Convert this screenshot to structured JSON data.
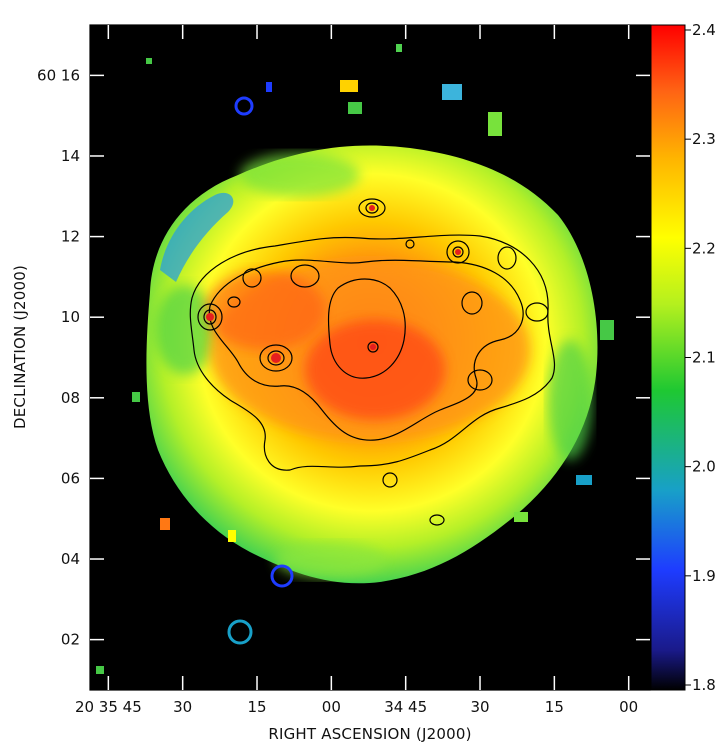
{
  "chart_data": {
    "type": "heatmap",
    "title": "",
    "xlabel": "RIGHT ASCENSION (J2000)",
    "ylabel": "DECLINATION (J2000)",
    "x_ticks": [
      {
        "label": "20 35 45",
        "ra_s": 2145
      },
      {
        "label": "30",
        "ra_s": 2130
      },
      {
        "label": "15",
        "ra_s": 2115
      },
      {
        "label": "00",
        "ra_s": 2100
      },
      {
        "label": "34 45",
        "ra_s": 2085
      },
      {
        "label": "30",
        "ra_s": 2070
      },
      {
        "label": "15",
        "ra_s": 2055
      },
      {
        "label": "00",
        "ra_s": 2040
      }
    ],
    "y_ticks": [
      {
        "label": "60 16",
        "dec_arcmin": 16
      },
      {
        "label": "14",
        "dec_arcmin": 14
      },
      {
        "label": "12",
        "dec_arcmin": 12
      },
      {
        "label": "10",
        "dec_arcmin": 10
      },
      {
        "label": "08",
        "dec_arcmin": 8
      },
      {
        "label": "06",
        "dec_arcmin": 6
      },
      {
        "label": "04",
        "dec_arcmin": 4
      },
      {
        "label": "02",
        "dec_arcmin": 2
      }
    ],
    "xlim_ra_s": [
      2148.7,
      2035.7
    ],
    "ylim_dec_arcmin": [
      0.75,
      17.25
    ],
    "colorbar": {
      "ticks": [
        "2.4",
        "2.3",
        "2.2",
        "2.1",
        "2.0",
        "1.9",
        "1.8"
      ],
      "range": [
        1.8,
        2.4
      ],
      "colormap": [
        "#000000",
        "#1a1a8a",
        "#1e3cff",
        "#18a0c8",
        "#1ec832",
        "#b4f01e",
        "#ffff00",
        "#ffb400",
        "#ff6414",
        "#ff0000"
      ]
    },
    "background_color": "#000000",
    "contour_color": "#000000",
    "grid": false
  }
}
